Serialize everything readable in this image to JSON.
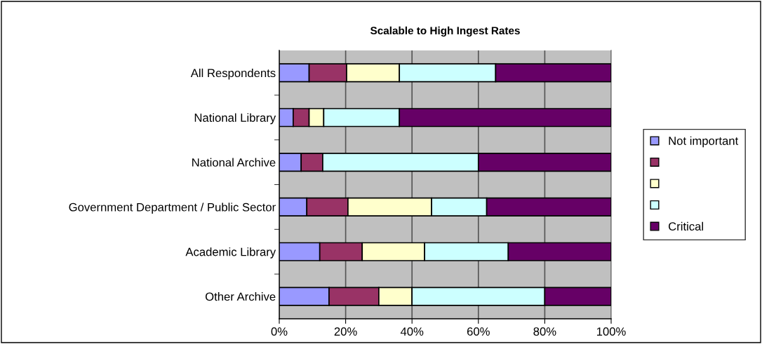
{
  "chart_data": {
    "type": "bar",
    "orientation": "horizontal",
    "stacked": true,
    "title": "Scalable to High Ingest Rates",
    "categories": [
      "All Respondents",
      "National Library",
      "National Archive",
      "Government Department / Public Sector",
      "Academic Library",
      "Other Archive"
    ],
    "series": [
      {
        "name": "Not important",
        "color": "#9999ff",
        "values": [
          9,
          4.2,
          6.6,
          8.3,
          12.2,
          15
        ]
      },
      {
        "color": "#993366",
        "values": [
          11.3,
          4.8,
          6.5,
          12.4,
          12.8,
          15
        ]
      },
      {
        "color": "#ffffcc",
        "values": [
          15.9,
          4.4,
          0,
          25.2,
          18.8,
          10
        ]
      },
      {
        "color": "#ccffff",
        "values": [
          29,
          22.8,
          46.9,
          16.6,
          25.2,
          40
        ]
      },
      {
        "name": "Critical",
        "color": "#660066",
        "values": [
          34.8,
          63.8,
          40,
          37.5,
          31,
          20
        ]
      }
    ],
    "xlim": [
      0,
      100
    ],
    "xticks": [
      {
        "value": 0,
        "label": "0%"
      },
      {
        "value": 20,
        "label": "20%"
      },
      {
        "value": 40,
        "label": "40%"
      },
      {
        "value": 60,
        "label": "60%"
      },
      {
        "value": 80,
        "label": "80%"
      },
      {
        "value": 100,
        "label": "100%"
      }
    ],
    "grid": "x",
    "legend": "right"
  }
}
